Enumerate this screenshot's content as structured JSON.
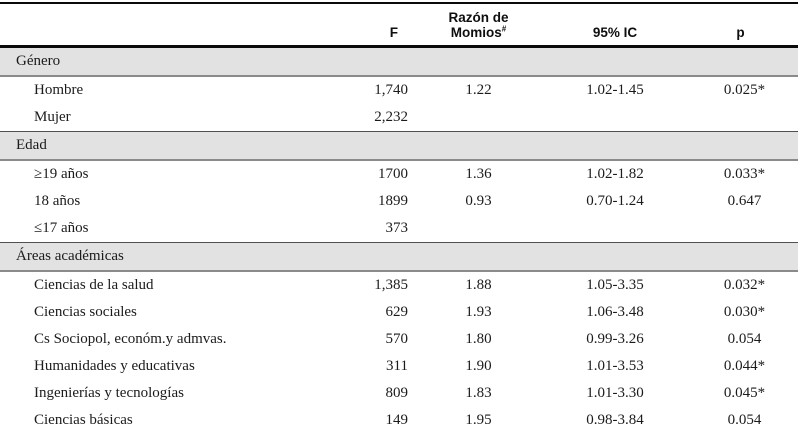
{
  "table": {
    "header": {
      "f": "F",
      "rm_line1": "Razón de",
      "rm_line2": "Momios",
      "rm_sup": "#",
      "ic": "95% IC",
      "p": "p"
    },
    "sections": [
      {
        "label": "Género",
        "rows": [
          {
            "label": "Hombre",
            "f": "1,740",
            "rm": "1.22",
            "ic": "1.02-1.45",
            "p": "0.025*"
          },
          {
            "label": "Mujer",
            "f": "2,232",
            "rm": "",
            "ic": "",
            "p": ""
          }
        ]
      },
      {
        "label": "Edad",
        "rows": [
          {
            "label": "≥19 años",
            "f": "1700",
            "rm": "1.36",
            "ic": "1.02-1.82",
            "p": "0.033*"
          },
          {
            "label": "18 años",
            "f": "1899",
            "rm": "0.93",
            "ic": "0.70-1.24",
            "p": "0.647"
          },
          {
            "label": "≤17 años",
            "f": "373",
            "rm": "",
            "ic": "",
            "p": ""
          }
        ]
      },
      {
        "label": "Áreas académicas",
        "rows": [
          {
            "label": "Ciencias de la salud",
            "f": "1,385",
            "rm": "1.88",
            "ic": "1.05-3.35",
            "p": "0.032*"
          },
          {
            "label": "Ciencias sociales",
            "f": "629",
            "rm": "1.93",
            "ic": "1.06-3.48",
            "p": "0.030*"
          },
          {
            "label": "Cs Sociopol, económ.y admvas.",
            "f": "570",
            "rm": "1.80",
            "ic": "0.99-3.26",
            "p": "0.054"
          },
          {
            "label": "Humanidades y educativas",
            "f": "311",
            "rm": "1.90",
            "ic": "1.01-3.53",
            "p": "0.044*"
          },
          {
            "label": "Ingenierías y tecnologías",
            "f": "809",
            "rm": "1.83",
            "ic": "1.01-3.30",
            "p": "0.045*"
          },
          {
            "label": "Ciencias básicas",
            "f": "149",
            "rm": "1.95",
            "ic": "0.98-3.84",
            "p": "0.054"
          }
        ]
      }
    ]
  },
  "colors": {
    "rule": "#0a0a0a",
    "section_band_background": "#e2e2e2",
    "section_band_border_top": "#505050",
    "section_band_border_bottom": "#8a8a8a",
    "text": "#1b1b1b"
  }
}
